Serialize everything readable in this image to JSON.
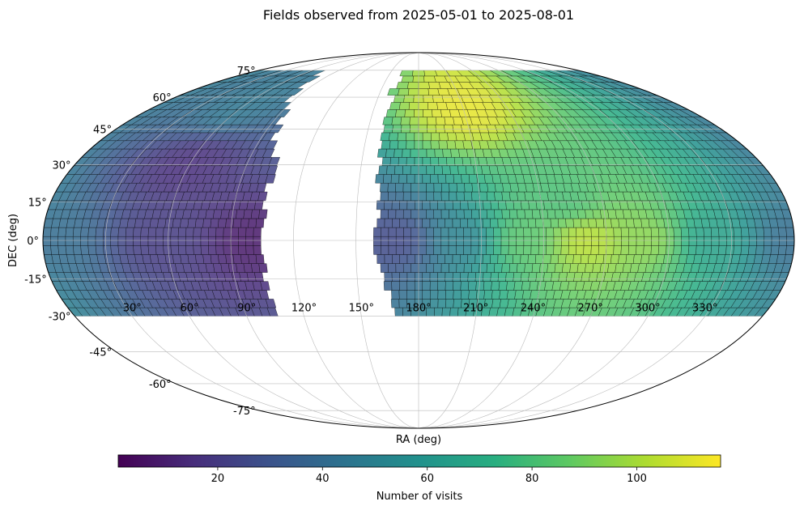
{
  "chart_data": {
    "type": "heatmap",
    "projection": "mollweide",
    "title": "Fields observed from 2025-05-01 to 2025-08-01",
    "xlabel": "RA (deg)",
    "ylabel": "DEC (deg)",
    "grid": true,
    "ra_ticks": [
      "30°",
      "60°",
      "90°",
      "120°",
      "150°",
      "180°",
      "210°",
      "240°",
      "270°",
      "300°",
      "330°"
    ],
    "ra_tick_values": [
      30,
      60,
      90,
      120,
      150,
      180,
      210,
      240,
      270,
      300,
      330
    ],
    "dec_ticks": [
      "-75°",
      "-60°",
      "-45°",
      "-30°",
      "-15°",
      "0°",
      "15°",
      "30°",
      "45°",
      "60°",
      "75°"
    ],
    "dec_tick_values": [
      -75,
      -60,
      -45,
      -30,
      -15,
      0,
      15,
      30,
      45,
      60,
      75
    ],
    "colormap": "viridis",
    "colorbar": {
      "label": "Number of visits",
      "range": [
        1,
        116
      ],
      "ticks": [
        20,
        40,
        60,
        80,
        100
      ],
      "tick_labels": [
        "20",
        "40",
        "60",
        "80",
        "100"
      ]
    },
    "observed_region": {
      "dec_range": [
        -30,
        75
      ],
      "unobserved_ra_band_deg": [
        105,
        160
      ]
    },
    "visits_profile": [
      {
        "ra": 0,
        "dec": 0,
        "visits": 40
      },
      {
        "ra": 60,
        "dec": 0,
        "visits": 20
      },
      {
        "ra": 100,
        "dec": 0,
        "visits": 8
      },
      {
        "ra": 170,
        "dec": 0,
        "visits": 25
      },
      {
        "ra": 200,
        "dec": 0,
        "visits": 50
      },
      {
        "ra": 230,
        "dec": 0,
        "visits": 85
      },
      {
        "ra": 260,
        "dec": 0,
        "visits": 105
      },
      {
        "ra": 290,
        "dec": 0,
        "visits": 95
      },
      {
        "ra": 320,
        "dec": 0,
        "visits": 65
      },
      {
        "ra": 250,
        "dec": 15,
        "visits": 80
      },
      {
        "ra": 210,
        "dec": 55,
        "visits": 112
      },
      {
        "ra": 60,
        "dec": 55,
        "visits": 45
      },
      {
        "ra": 60,
        "dec": 30,
        "visits": 15
      }
    ]
  }
}
